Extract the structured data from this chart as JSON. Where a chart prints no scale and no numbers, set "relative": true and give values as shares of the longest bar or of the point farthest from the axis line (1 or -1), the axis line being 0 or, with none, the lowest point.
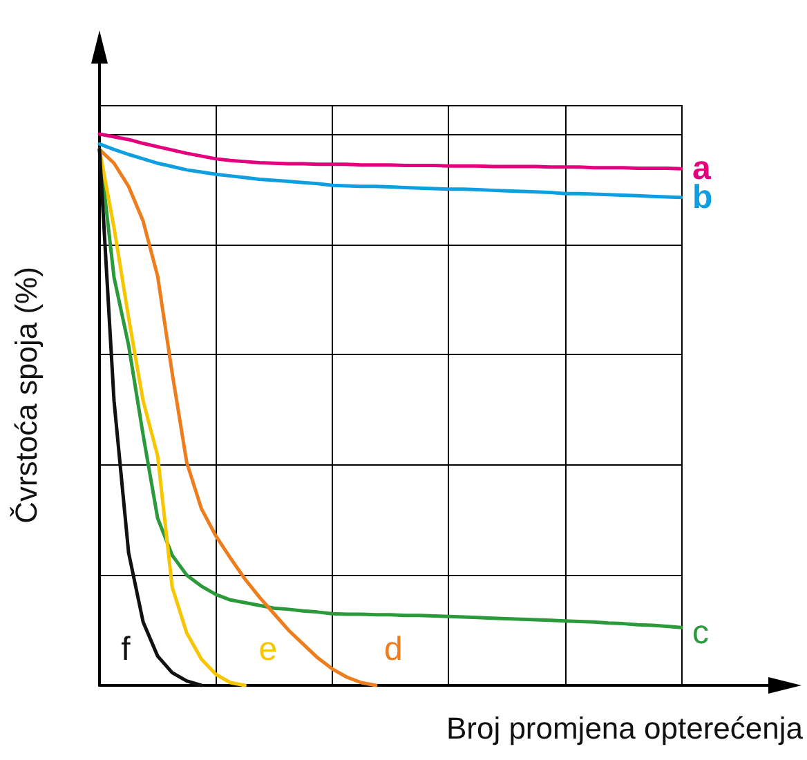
{
  "chart_data": {
    "type": "line",
    "relative": true,
    "xlabel": "Broj promjena opterećenja",
    "ylabel": "Čvrstoća spoja (%)",
    "grid": true,
    "legend": false,
    "marker": "none",
    "line_style": "solid",
    "categories": [
      null,
      null,
      null,
      null,
      null,
      null,
      null,
      null,
      null,
      null,
      null,
      null,
      null,
      null,
      null,
      null,
      null,
      null,
      null,
      null,
      null,
      null,
      null,
      null,
      null,
      null,
      null,
      null,
      null,
      null,
      null,
      null,
      null,
      null,
      null,
      null,
      null,
      null,
      null,
      null,
      null
    ],
    "series": [
      {
        "name": "a",
        "color": "#e4007c",
        "values": [
          1.0,
          0.995,
          0.99,
          0.983,
          0.977,
          0.971,
          0.965,
          0.96,
          0.955,
          0.952,
          0.95,
          0.948,
          0.947,
          0.946,
          0.946,
          0.945,
          0.945,
          0.945,
          0.944,
          0.944,
          0.944,
          0.943,
          0.943,
          0.943,
          0.942,
          0.942,
          0.942,
          0.941,
          0.941,
          0.941,
          0.941,
          0.94,
          0.94,
          0.94,
          0.939,
          0.939,
          0.939,
          0.938,
          0.938,
          0.938,
          0.937
        ]
      },
      {
        "name": "b",
        "color": "#0f9ee0",
        "values": [
          0.982,
          0.972,
          0.963,
          0.955,
          0.947,
          0.941,
          0.935,
          0.931,
          0.927,
          0.924,
          0.921,
          0.918,
          0.916,
          0.914,
          0.912,
          0.91,
          0.907,
          0.906,
          0.905,
          0.905,
          0.904,
          0.903,
          0.902,
          0.901,
          0.9,
          0.9,
          0.899,
          0.898,
          0.897,
          0.896,
          0.895,
          0.894,
          0.892,
          0.892,
          0.891,
          0.89,
          0.889,
          0.888,
          0.887,
          0.886,
          0.885
        ]
      },
      {
        "name": "c",
        "color": "#2a9a3a",
        "values": [
          0.972,
          0.74,
          0.617,
          0.454,
          0.303,
          0.236,
          0.2,
          0.18,
          0.165,
          0.155,
          0.15,
          0.145,
          0.14,
          0.138,
          0.135,
          0.133,
          0.13,
          0.129,
          0.129,
          0.128,
          0.128,
          0.127,
          0.127,
          0.126,
          0.125,
          0.124,
          0.123,
          0.122,
          0.121,
          0.12,
          0.119,
          0.118,
          0.117,
          0.116,
          0.115,
          0.113,
          0.112,
          0.11,
          0.109,
          0.107,
          0.105
        ]
      },
      {
        "name": "d",
        "color": "#ee7d1e",
        "values": [
          0.972,
          0.947,
          0.905,
          0.842,
          0.742,
          0.566,
          0.404,
          0.321,
          0.271,
          0.231,
          0.193,
          0.16,
          0.13,
          0.1,
          0.075,
          0.05,
          0.03,
          0.015,
          0.005,
          0,
          null,
          null,
          null,
          null,
          null,
          null,
          null,
          null,
          null,
          null,
          null,
          null,
          null,
          null,
          null,
          null,
          null,
          null,
          null,
          null,
          null
        ]
      },
      {
        "name": "e",
        "color": "#f7c600",
        "values": [
          0.972,
          0.83,
          0.667,
          0.516,
          0.416,
          0.178,
          0.095,
          0.048,
          0.02,
          0.005,
          0,
          null,
          null,
          null,
          null,
          null,
          null,
          null,
          null,
          null,
          null,
          null,
          null,
          null,
          null,
          null,
          null,
          null,
          null,
          null,
          null,
          null,
          null,
          null,
          null,
          null,
          null,
          null,
          null,
          null,
          null
        ]
      },
      {
        "name": "f",
        "color": "#111111",
        "values": [
          0.972,
          0.516,
          0.241,
          0.115,
          0.053,
          0.023,
          0.008,
          0,
          null,
          null,
          null,
          null,
          null,
          null,
          null,
          null,
          null,
          null,
          null,
          null,
          null,
          null,
          null,
          null,
          null,
          null,
          null,
          null,
          null,
          null,
          null,
          null,
          null,
          null,
          null,
          null,
          null,
          null,
          null,
          null,
          null
        ]
      }
    ]
  }
}
